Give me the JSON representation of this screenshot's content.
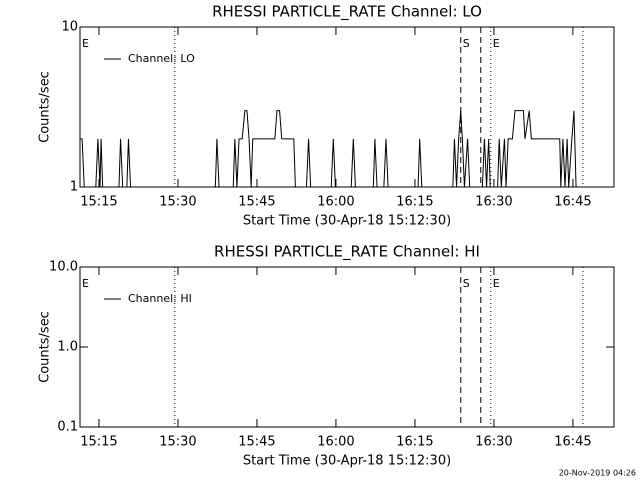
{
  "chart_data": [
    {
      "type": "line",
      "title": "RHESSI PARTICLE_RATE Channel: LO",
      "xlabel": "Start Time (30-Apr-18 15:12:30)",
      "ylabel": "Counts/sec",
      "log_y": true,
      "xlim": [
        911.4,
        1012.8
      ],
      "ylim": [
        1,
        10
      ],
      "xticks": [
        {
          "value": 915,
          "label": "15:15"
        },
        {
          "value": 930,
          "label": "15:30"
        },
        {
          "value": 945,
          "label": "15:45"
        },
        {
          "value": 960,
          "label": "16:00"
        },
        {
          "value": 975,
          "label": "16:15"
        },
        {
          "value": 990,
          "label": "16:30"
        },
        {
          "value": 1005,
          "label": "16:45"
        }
      ],
      "yticks": [
        1,
        10
      ],
      "legend": "upper left",
      "vlines": [
        {
          "x": 929.4,
          "style": "dotted"
        },
        {
          "x": 983.7,
          "style": "dashed"
        },
        {
          "x": 987.5,
          "style": "dashed"
        },
        {
          "x": 989.4,
          "style": "dotted"
        },
        {
          "x": 1006.9,
          "style": "dotted"
        }
      ],
      "flags": [
        {
          "label": "E",
          "x": 911.4
        },
        {
          "label": "S",
          "x": 983.7
        },
        {
          "label": "E",
          "x": 989.4
        }
      ],
      "series": [
        {
          "name": "Channel: LO",
          "color": "#000000",
          "x": [
            911.4,
            911.8,
            912.2,
            914.4,
            914.8,
            915.2,
            915.4,
            915.7,
            918.8,
            919.1,
            919.5,
            920.3,
            920.6,
            921.0,
            937.1,
            937.4,
            937.8,
            940.5,
            940.8,
            941.2,
            941.6,
            942.2,
            942.7,
            943.1,
            943.5,
            943.9,
            944.2,
            948.4,
            948.8,
            949.3,
            949.7,
            952.0,
            952.3,
            954.4,
            954.8,
            955.2,
            959.1,
            959.5,
            959.9,
            962.9,
            963.3,
            963.7,
            967.1,
            967.4,
            967.8,
            969.1,
            969.5,
            969.9,
            975.6,
            975.9,
            976.3,
            982.2,
            982.5,
            982.9,
            983.3,
            983.7,
            984.0,
            984.4,
            985.0,
            985.4,
            987.8,
            988.2,
            988.6,
            989.0,
            989.3,
            990.7,
            991.0,
            991.4,
            992.0,
            992.3,
            992.7,
            993.5,
            994.0,
            995.6,
            995.9,
            996.7,
            997.1,
            1002.5,
            1002.7,
            1003.1,
            1003.5,
            1003.9,
            1004.2,
            1004.8,
            1005.2,
            1005.6
          ],
          "values": [
            2,
            2,
            1,
            1,
            2,
            1,
            2,
            1,
            1,
            2,
            1,
            1,
            2,
            1,
            1,
            2,
            1,
            1,
            2,
            1,
            2,
            2,
            3,
            3,
            2,
            1,
            2,
            2,
            3,
            3,
            2,
            2,
            1,
            1,
            2,
            1,
            1,
            2,
            1,
            1,
            2,
            1,
            1,
            2,
            1,
            1,
            2,
            1,
            1,
            2,
            1,
            1,
            2,
            1,
            2,
            3,
            2,
            1,
            2,
            1,
            1,
            2,
            1,
            2,
            1,
            1,
            2,
            1,
            2,
            1,
            2,
            2,
            3,
            3,
            2,
            3,
            2,
            2,
            1,
            2,
            1,
            2,
            1,
            2,
            3,
            1
          ]
        }
      ]
    },
    {
      "type": "line",
      "title": "RHESSI PARTICLE_RATE Channel: HI",
      "xlabel": "Start Time (30-Apr-18 15:12:30)",
      "ylabel": "Counts/sec",
      "log_y": true,
      "xlim": [
        911.4,
        1012.8
      ],
      "ylim": [
        0.1,
        10
      ],
      "xticks": [
        {
          "value": 915,
          "label": "15:15"
        },
        {
          "value": 930,
          "label": "15:30"
        },
        {
          "value": 945,
          "label": "15:45"
        },
        {
          "value": 960,
          "label": "16:00"
        },
        {
          "value": 975,
          "label": "16:15"
        },
        {
          "value": 990,
          "label": "16:30"
        },
        {
          "value": 1005,
          "label": "16:45"
        }
      ],
      "yticks": [
        0.1,
        {
          "value": 1,
          "label": "1.0"
        },
        {
          "value": 10,
          "label": "10.0"
        }
      ],
      "legend": "upper left",
      "vlines": [
        {
          "x": 929.4,
          "style": "dotted"
        },
        {
          "x": 983.7,
          "style": "dashed"
        },
        {
          "x": 987.5,
          "style": "dashed"
        },
        {
          "x": 989.4,
          "style": "dotted"
        },
        {
          "x": 1006.9,
          "style": "dotted"
        }
      ],
      "flags": [
        {
          "label": "E",
          "x": 911.4
        },
        {
          "label": "S",
          "x": 983.7
        },
        {
          "label": "E",
          "x": 989.4
        }
      ],
      "series": [
        {
          "name": "Channel: HI",
          "color": "#000000",
          "x": [],
          "values": []
        }
      ]
    }
  ],
  "footer": "20-Nov-2019 04:26"
}
